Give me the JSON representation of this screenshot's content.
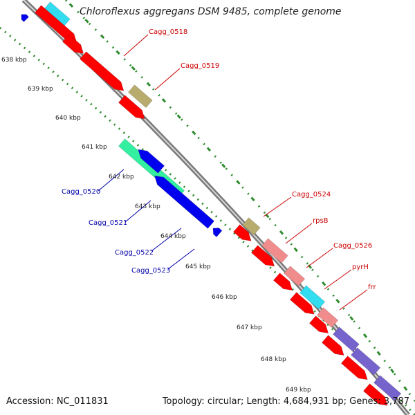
{
  "title": "Chloroflexus aggregans DSM 9485, complete genome",
  "accession": {
    "label": "Accession:",
    "value": "NC_011831"
  },
  "topology": {
    "label": "Topology:",
    "value": "circular",
    "length_label": "Length:",
    "length": "4,684,931 bp",
    "genes_label": "Genes:",
    "genes": "3,787"
  },
  "colors": {
    "backbone_dark": "#7a7a7a",
    "backbone_light": "#d8d8d8",
    "tick_dots": "#2e8b2e",
    "label_forward": "#cc0000",
    "label_reverse": "#0000aa",
    "gene_red": "#ff0000",
    "gene_olive": "#b8ab6e",
    "gene_cyan": "#33ddf0",
    "gene_salmon": "#f08c8c",
    "gene_blue": "#0000ee",
    "gene_green": "#33f0a0",
    "gene_purple": "#7763cc"
  },
  "scale_ticks": [
    "638 kbp",
    "639 kbp",
    "640 kbp",
    "641 kbp",
    "642 kbp",
    "643 kbp",
    "644 kbp",
    "645 kbp",
    "646 kbp",
    "647 kbp",
    "648 kbp",
    "649 kbp"
  ],
  "forward_labels": [
    "Cagg_0518",
    "Cagg_0519",
    "Cagg_0524",
    "rpsB",
    "Cagg_0526",
    "pyrH",
    "frr"
  ],
  "reverse_labels": [
    "Cagg_0520",
    "Cagg_0521",
    "Cagg_0522",
    "Cagg_0523"
  ]
}
